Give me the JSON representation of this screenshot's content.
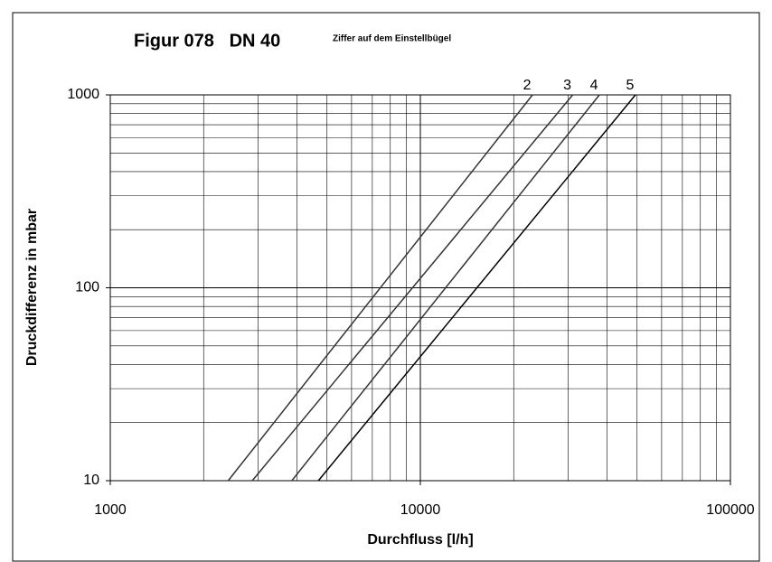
{
  "chart_data": {
    "type": "line",
    "title": "Figur 078   DN 40",
    "subtitle": "Ziffer auf dem Einstellbügel",
    "xlabel": "Durchfluss [l/h]",
    "ylabel": "Druckdifferenz in mbar",
    "xscale": "log",
    "yscale": "log",
    "xlim": [
      1000,
      100000
    ],
    "xticks": [
      1000,
      10000,
      100000
    ],
    "ylim": [
      10,
      1000
    ],
    "yticks": [
      10,
      100,
      1000
    ],
    "grid": true,
    "series": [
      {
        "name": "2",
        "color": "#333333",
        "x": [
          2400,
          23000
        ],
        "values": [
          10,
          1000
        ]
      },
      {
        "name": "3",
        "color": "#333333",
        "x": [
          2870,
          31000
        ],
        "values": [
          10,
          1000
        ]
      },
      {
        "name": "4",
        "color": "#333333",
        "x": [
          3850,
          37800
        ],
        "values": [
          10,
          1000
        ]
      },
      {
        "name": "5",
        "color": "#000000",
        "x": [
          4690,
          49400
        ],
        "values": [
          10,
          1000
        ]
      }
    ]
  }
}
